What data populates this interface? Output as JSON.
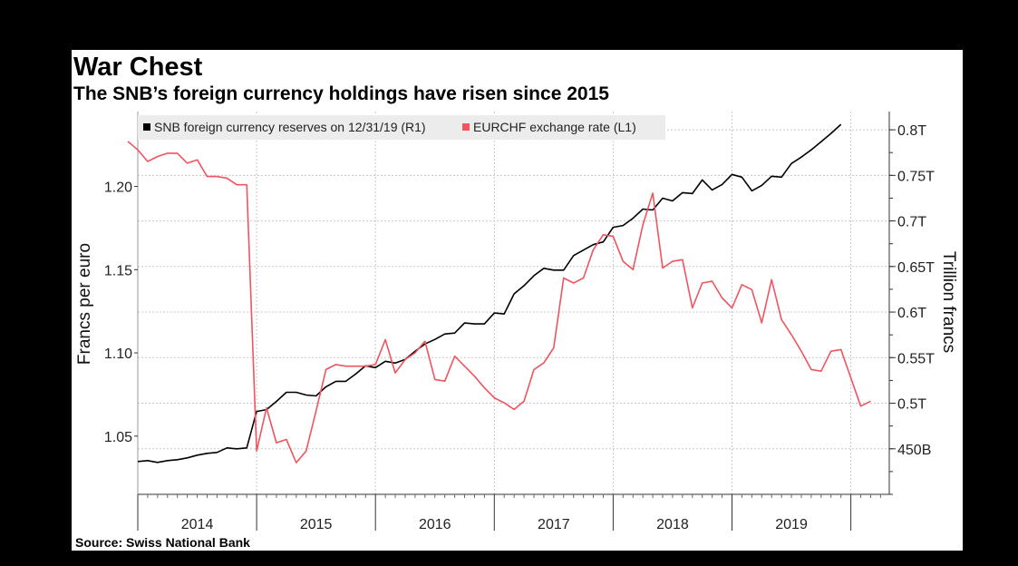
{
  "header": {
    "title": "War Chest",
    "subtitle": "The SNB’s foreign currency holdings have risen since 2015"
  },
  "footer": {
    "source": "Source:  Swiss National Bank"
  },
  "colors": {
    "reserves": "#000000",
    "eurchf": "#f0545f",
    "grid": "#c8c8c8",
    "legend_bg": "#ececec"
  },
  "chart_data": {
    "type": "line",
    "title": "War Chest",
    "subtitle": "The SNB’s foreign currency holdings have risen since 2015",
    "x_ticks": [
      "2014",
      "2015",
      "2016",
      "2017",
      "2018",
      "2019"
    ],
    "legend": [
      {
        "key": "reserves",
        "label": "SNB foreign currency reserves on 12/31/19 (R1)"
      },
      {
        "key": "eurchf",
        "label": "EURCHF exchange rate  (L1)"
      }
    ],
    "left_axis": {
      "label": "Francs per euro",
      "ylim": [
        1.015,
        1.245
      ],
      "ticks": [
        1.05,
        1.1,
        1.15,
        1.2
      ],
      "tick_labels": [
        "1.05",
        "1.10",
        "1.15",
        "1.20"
      ]
    },
    "right_axis": {
      "label": "Trillion francs",
      "ylim": [
        400,
        820
      ],
      "ticks": [
        450,
        500,
        550,
        600,
        650,
        700,
        750,
        800
      ],
      "tick_labels": [
        "450B",
        "0.5T",
        "0.55T",
        "0.6T",
        "0.65T",
        "0.7T",
        "0.75T",
        "0.8T"
      ]
    },
    "series": [
      {
        "name": "SNB foreign currency reserves on 12/31/19 (R1)",
        "axis": "right",
        "start": "2014-01",
        "unit": "billion francs",
        "values": [
          436,
          437,
          435,
          437,
          438,
          440,
          443,
          445,
          446,
          451,
          450,
          451,
          491,
          493,
          502,
          512,
          512,
          509,
          508,
          518,
          524,
          524,
          532,
          541,
          539,
          546,
          544,
          548,
          557,
          565,
          570,
          576,
          577,
          588,
          587,
          587,
          599,
          598,
          620,
          629,
          640,
          648,
          646,
          646,
          662,
          668,
          674,
          677,
          693,
          695,
          703,
          713,
          712,
          725,
          722,
          731,
          730,
          745,
          734,
          740,
          751,
          748,
          733,
          739,
          749,
          748,
          763,
          770,
          778,
          787,
          796,
          806
        ]
      },
      {
        "name": "EURCHF exchange rate  (L1)",
        "axis": "left",
        "start": "2013-12",
        "unit": "francs per euro",
        "values": [
          1.227,
          1.222,
          1.215,
          1.218,
          1.22,
          1.22,
          1.214,
          1.216,
          1.206,
          1.206,
          1.205,
          1.201,
          1.201,
          1.041,
          1.067,
          1.046,
          1.048,
          1.034,
          1.041,
          1.065,
          1.09,
          1.093,
          1.092,
          1.092,
          1.092,
          1.093,
          1.108,
          1.088,
          1.096,
          1.1,
          1.107,
          1.084,
          1.083,
          1.098,
          1.092,
          1.086,
          1.079,
          1.073,
          1.07,
          1.066,
          1.071,
          1.09,
          1.094,
          1.103,
          1.145,
          1.142,
          1.145,
          1.162,
          1.171,
          1.17,
          1.155,
          1.15,
          1.177,
          1.196,
          1.151,
          1.155,
          1.156,
          1.127,
          1.142,
          1.143,
          1.133,
          1.127,
          1.141,
          1.138,
          1.118,
          1.144,
          1.12,
          1.111,
          1.101,
          1.09,
          1.089,
          1.101,
          1.102,
          1.085,
          1.068,
          1.071
        ]
      }
    ]
  }
}
